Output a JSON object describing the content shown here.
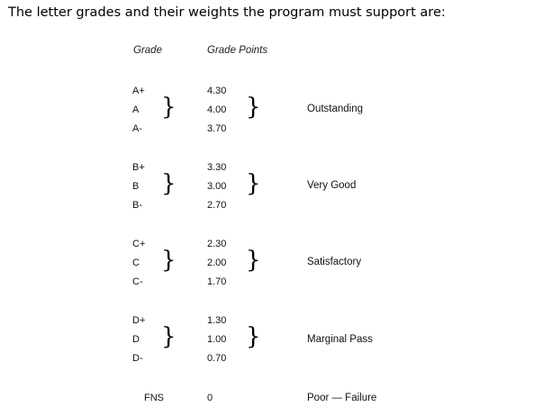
{
  "intro": "The letter grades and their weights the program must support are:",
  "headers": {
    "grade": "Grade",
    "points": "Grade Points"
  },
  "groups": [
    {
      "grades": [
        "A+",
        "A",
        "A-"
      ],
      "points": [
        "4.30",
        "4.00",
        "3.70"
      ],
      "label": "Outstanding"
    },
    {
      "grades": [
        "B+",
        "B",
        "B-"
      ],
      "points": [
        "3.30",
        "3.00",
        "2.70"
      ],
      "label": "Very Good"
    },
    {
      "grades": [
        "C+",
        "C",
        "C-"
      ],
      "points": [
        "2.30",
        "2.00",
        "1.70"
      ],
      "label": "Satisfactory"
    },
    {
      "grades": [
        "D+",
        "D",
        "D-"
      ],
      "points": [
        "1.30",
        "1.00",
        "0.70"
      ],
      "label": "Marginal Pass"
    }
  ],
  "fns": {
    "grade": "FNS",
    "points": "0",
    "label": "Poor — Failure"
  },
  "brace_glyph": "}"
}
